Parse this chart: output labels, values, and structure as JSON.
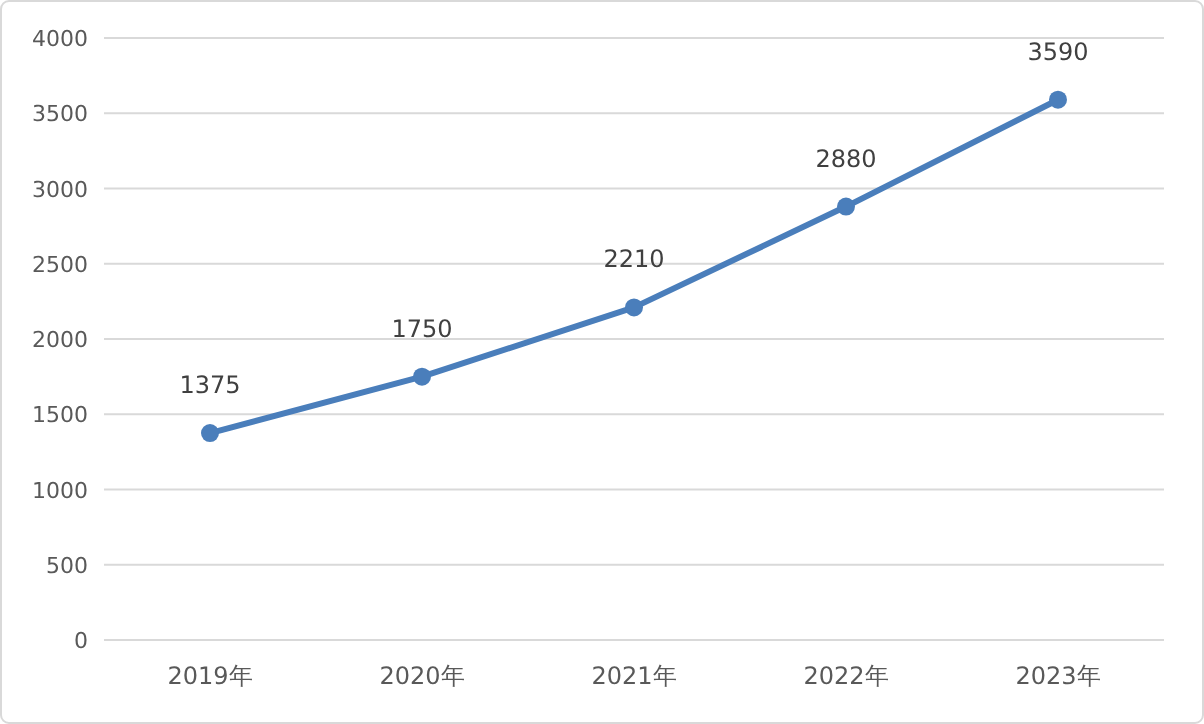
{
  "chart_data": {
    "type": "line",
    "categories": [
      "2019年",
      "2020年",
      "2021年",
      "2022年",
      "2023年"
    ],
    "values": [
      1375,
      1750,
      2210,
      2880,
      3590
    ],
    "color": "#4a7ebb",
    "ylim": [
      0,
      4000
    ],
    "yticks": [
      0,
      500,
      1000,
      1500,
      2000,
      2500,
      3000,
      3500,
      4000
    ],
    "grid": "y",
    "data_labels": true,
    "marker": "circle",
    "line_style": "solid"
  }
}
